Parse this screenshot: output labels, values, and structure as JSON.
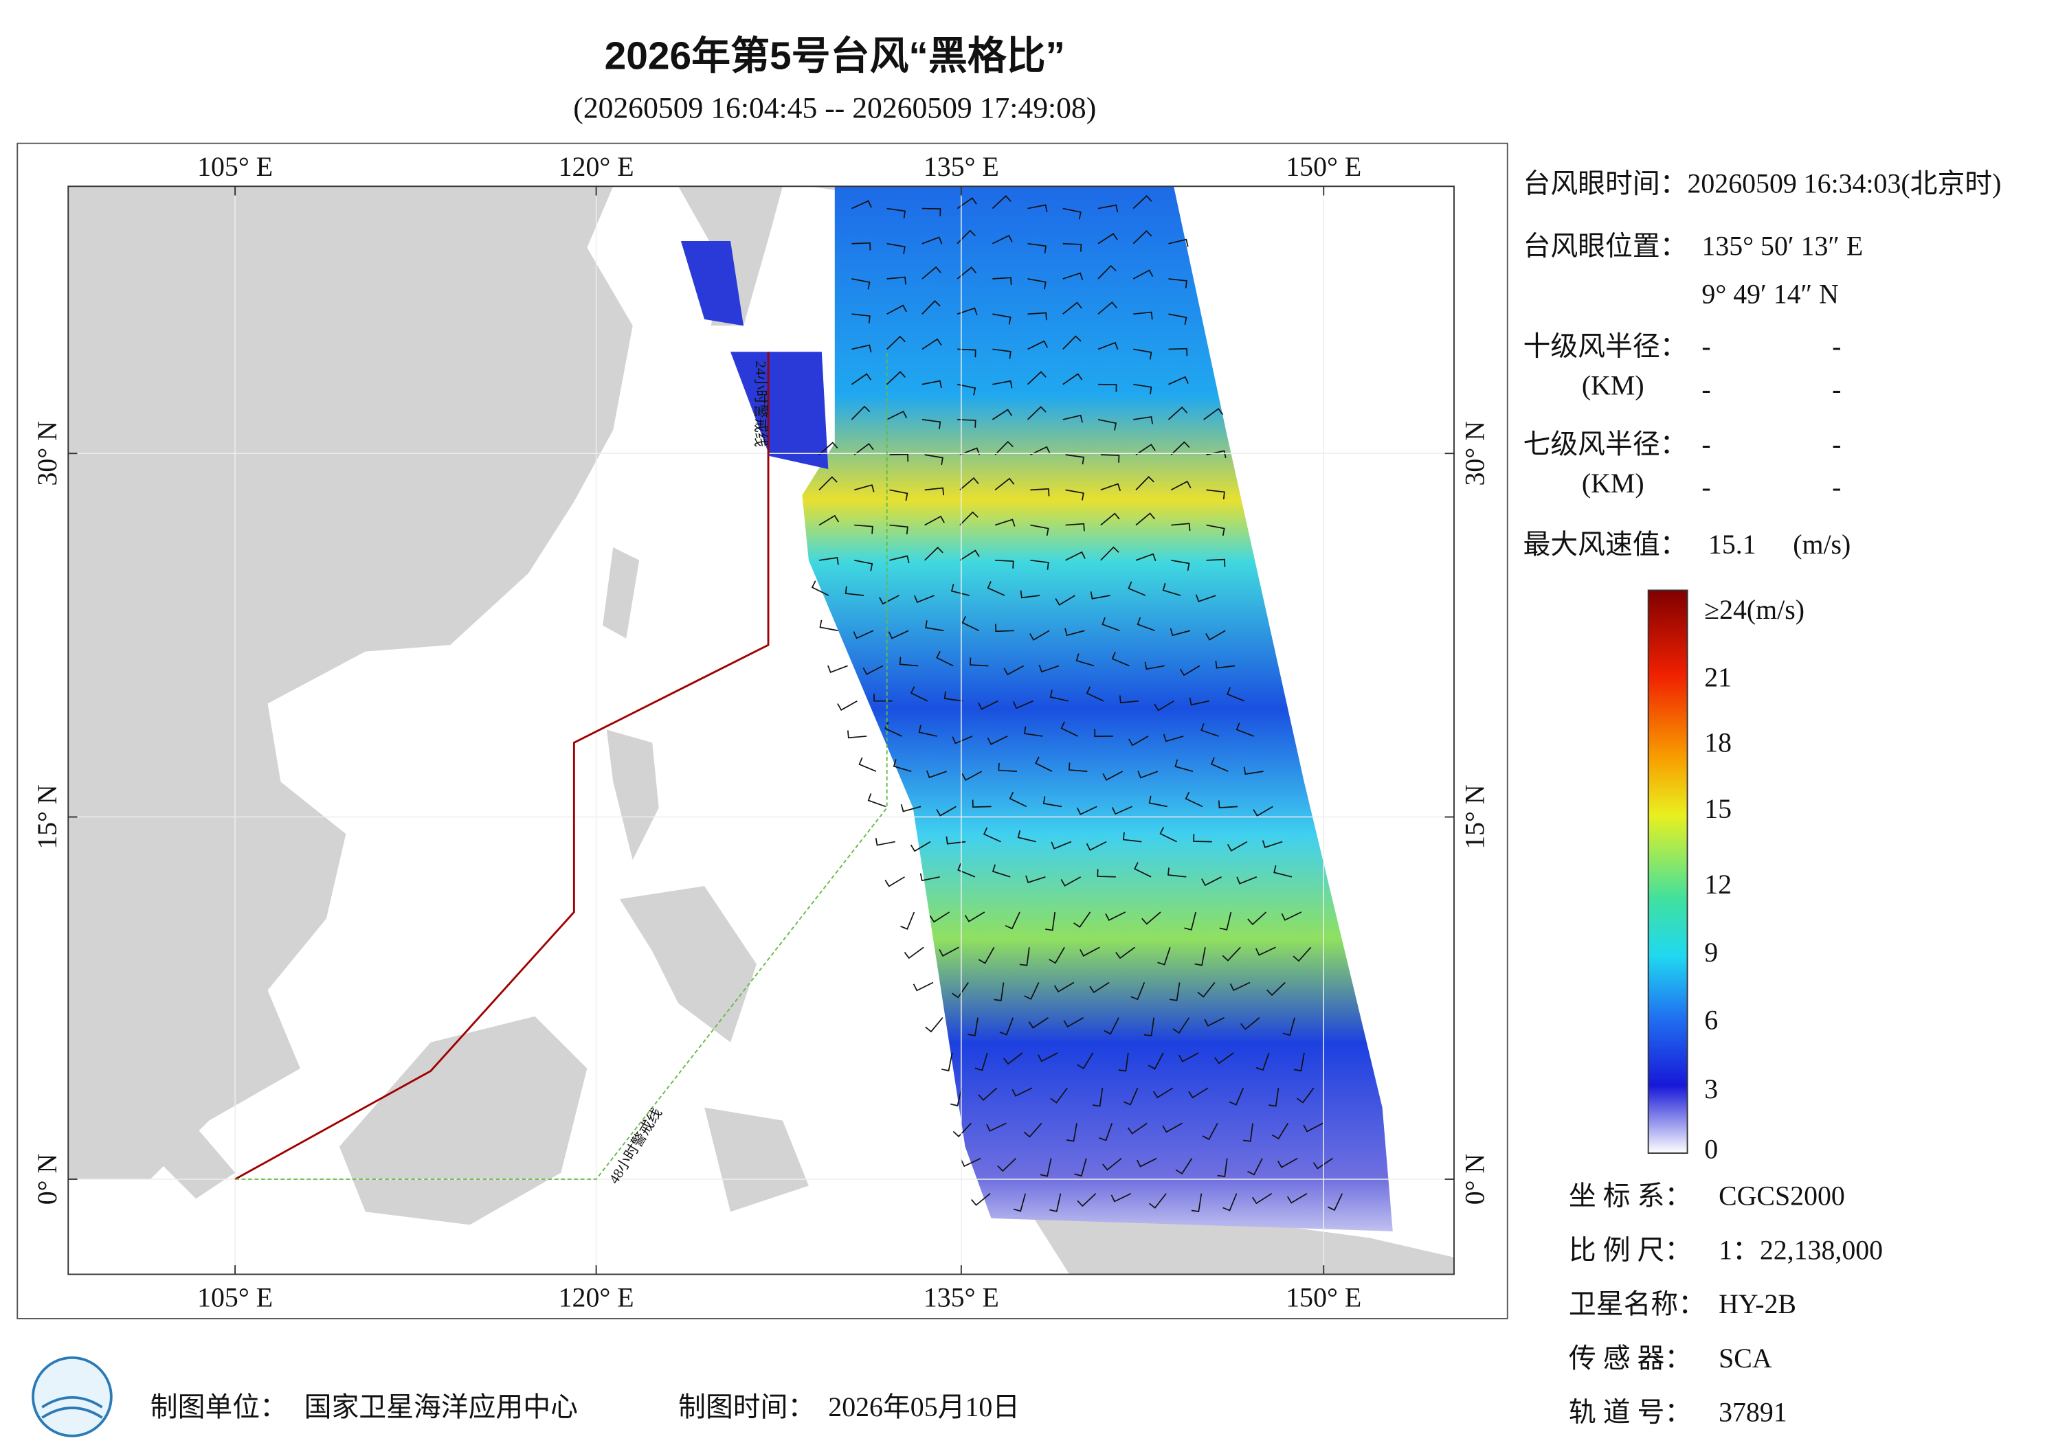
{
  "header": {
    "title": "2026年第5号台风“黑格比”",
    "subtitle": "(20260509 16:04:45 -- 20260509 17:49:08)"
  },
  "map": {
    "lon_labels": [
      "105° E",
      "120° E",
      "135° E",
      "150° E"
    ],
    "lat_labels": [
      "30° N",
      "15° N",
      "0° N"
    ],
    "warning_lines": [
      "24小时警戒线",
      "48小时警戒线"
    ]
  },
  "info": {
    "eye_time": "台风眼时间：20260509 16:34:03(北京时)",
    "eye_position": {
      "label": "台风眼位置：",
      "lon": "135° 50′ 13″ E",
      "lat": "9° 49′ 14″ N"
    },
    "radius_10": {
      "label": "十级风半径：",
      "unit": "(KM)",
      "values": [
        "-",
        "-",
        "-",
        "-"
      ]
    },
    "radius_7": {
      "label": "七级风半径：",
      "unit": "(KM)",
      "values": [
        "-",
        "-",
        "-",
        "-"
      ]
    },
    "max_wind": {
      "label": "最大风速值：",
      "value": "15.1",
      "unit": "(m/s)"
    }
  },
  "colorbar": {
    "labels": [
      "≥24(m/s)",
      "21",
      "18",
      "15",
      "12",
      "9",
      "6",
      "3",
      "0"
    ]
  },
  "meta": [
    {
      "label": "坐 标 系：",
      "value": "CGCS2000"
    },
    {
      "label": "比 例 尺：",
      "value": "1：22,138,000"
    },
    {
      "label": "卫星名称：",
      "value": "HY-2B"
    },
    {
      "label": "传 感 器：",
      "value": "SCA"
    },
    {
      "label": "轨 道 号：",
      "value": "37891"
    }
  ],
  "footer": {
    "unit_label": "制图单位：",
    "unit": "国家卫星海洋应用中心",
    "time_label": "制图时间：",
    "time": "2026年05月10日"
  }
}
